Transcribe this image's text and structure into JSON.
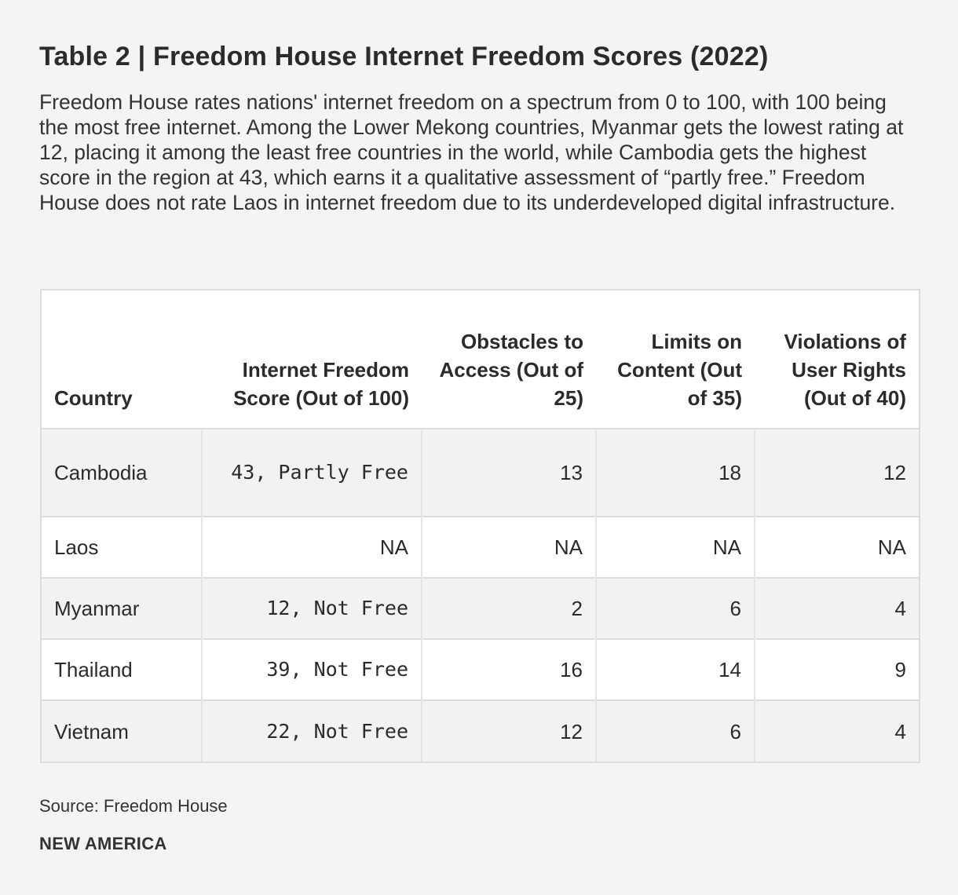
{
  "title": "Table 2 | Freedom House Internet Freedom Scores (2022)",
  "description": "Freedom House rates nations' internet freedom on a spectrum from 0 to 100, with 100 being the most free internet. Among the Lower Mekong countries, Myanmar gets the lowest rating at 12, placing it among the least free countries in the world, while Cambodia gets the highest score in the region at 43, which earns it a qualitative assessment of “partly free.” Freedom House does not rate Laos in internet freedom due to its underdeveloped digital infrastructure.",
  "table": {
    "headers": [
      "Country",
      "Internet Freedom Score (Out of 100)",
      "Obstacles to Access (Out of 25)",
      "Limits on Content (Out of 35)",
      "Violations of User Rights (Out of 40)"
    ],
    "rows": [
      [
        "Cambodia",
        "43, Partly Free",
        "13",
        "18",
        "12"
      ],
      [
        "Laos",
        "NA",
        "NA",
        "NA",
        "NA"
      ],
      [
        "Myanmar",
        "12, Not Free",
        "2",
        "6",
        "4"
      ],
      [
        "Thailand",
        "39, Not Free",
        "16",
        "14",
        "9"
      ],
      [
        "Vietnam",
        "22, Not Free",
        "12",
        "6",
        "4"
      ]
    ]
  },
  "source": "Source: Freedom House",
  "brand": "NEW AMERICA",
  "colors": {
    "background": "#f4f4f4",
    "text": "#2b2b2b",
    "table_border": "#dcdcdc",
    "row_shade": "#f2f2f2"
  }
}
